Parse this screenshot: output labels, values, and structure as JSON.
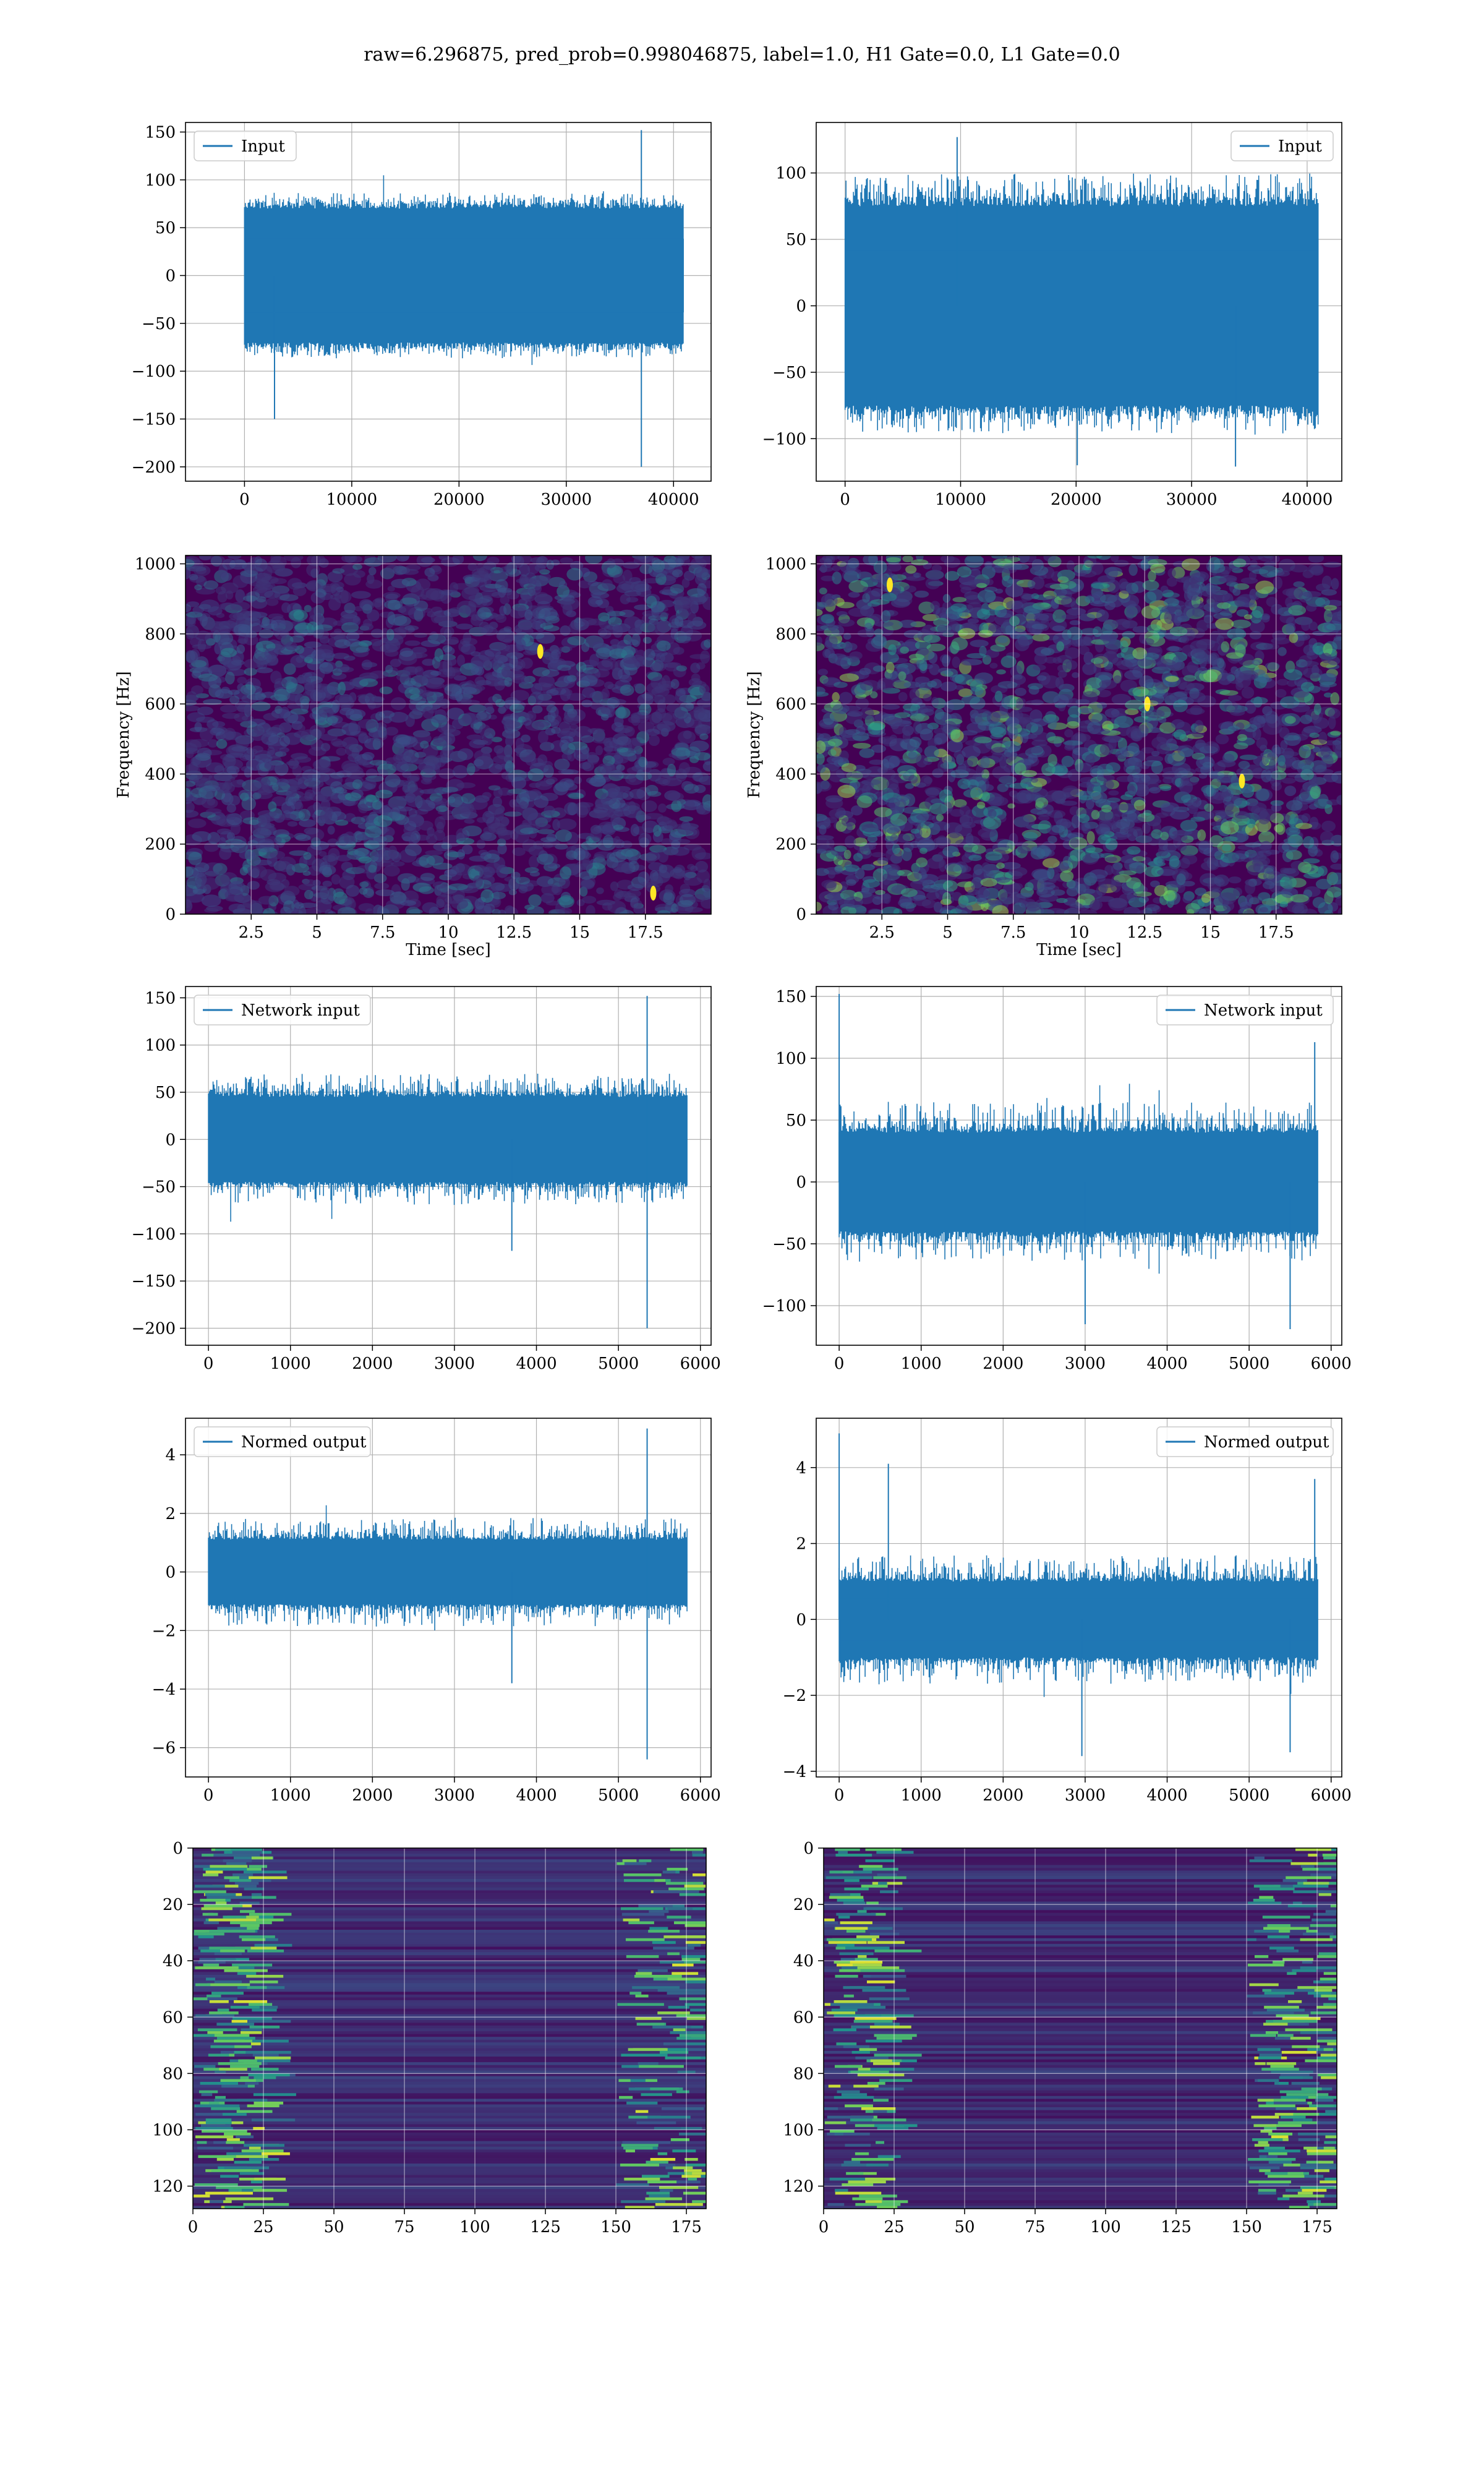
{
  "figure": {
    "title": "raw=6.296875, pred_prob=0.998046875, label=1.0, H1 Gate=0.0, L1 Gate=0.0"
  },
  "colors": {
    "line": "#1f77b4",
    "grid": "#b0b0b0",
    "viridis_low": "#440154",
    "viridis_high": "#fde725"
  },
  "chart_data": [
    {
      "id": "input-left",
      "type": "line",
      "legend": "Input",
      "legend_loc": "upper-left",
      "xlim": [
        -5500,
        43500
      ],
      "ylim": [
        -215,
        160
      ],
      "xticks": [
        0,
        10000,
        20000,
        30000,
        40000
      ],
      "yticks": [
        -200,
        -150,
        -100,
        -50,
        0,
        50,
        100,
        150
      ],
      "x_range": [
        0,
        40960
      ],
      "band": [
        -70,
        70
      ],
      "spread": [
        -100,
        100
      ],
      "peaks": [
        [
          37000,
          152
        ],
        [
          37000,
          -200
        ],
        [
          2800,
          -150
        ]
      ],
      "grid": true,
      "seed": 11
    },
    {
      "id": "input-right",
      "type": "line",
      "legend": "Input",
      "legend_loc": "upper-right",
      "xlim": [
        -2500,
        43000
      ],
      "ylim": [
        -132,
        138
      ],
      "xticks": [
        0,
        10000,
        20000,
        30000,
        40000
      ],
      "yticks": [
        -100,
        -50,
        0,
        50,
        100
      ],
      "x_range": [
        0,
        40960
      ],
      "band": [
        -75,
        75
      ],
      "spread": [
        -115,
        120
      ],
      "peaks": [
        [
          9700,
          127
        ],
        [
          20100,
          -120
        ],
        [
          33800,
          -121
        ]
      ],
      "grid": true,
      "seed": 23
    },
    {
      "id": "spectrogram-left",
      "type": "heatmap",
      "xlabel": "Time [sec]",
      "ylabel": "Frequency [Hz]",
      "xlim": [
        0,
        20
      ],
      "ylim": [
        0,
        1024
      ],
      "xticks": [
        2.5,
        5.0,
        7.5,
        10.0,
        12.5,
        15.0,
        17.5
      ],
      "yticks": [
        0,
        200,
        400,
        600,
        800,
        1000
      ],
      "intensity": 0.45,
      "hot_spots": [
        [
          17.8,
          60
        ],
        [
          13.5,
          750
        ]
      ],
      "grid": true,
      "seed": 5
    },
    {
      "id": "spectrogram-right",
      "type": "heatmap",
      "xlabel": "Time [sec]",
      "ylabel": "Frequency [Hz]",
      "xlim": [
        0,
        20
      ],
      "ylim": [
        0,
        1024
      ],
      "xticks": [
        2.5,
        5.0,
        7.5,
        10.0,
        12.5,
        15.0,
        17.5
      ],
      "yticks": [
        0,
        200,
        400,
        600,
        800,
        1000
      ],
      "intensity": 1.0,
      "hot_spots": [
        [
          16.2,
          380
        ],
        [
          2.8,
          940
        ],
        [
          12.6,
          600
        ]
      ],
      "grid": true,
      "seed": 7
    },
    {
      "id": "network-input-left",
      "type": "line",
      "legend": "Network input",
      "legend_loc": "upper-left",
      "xlim": [
        -280,
        6130
      ],
      "ylim": [
        -218,
        162
      ],
      "xticks": [
        0,
        1000,
        2000,
        3000,
        4000,
        5000,
        6000
      ],
      "yticks": [
        -200,
        -150,
        -100,
        -50,
        0,
        50,
        100,
        150
      ],
      "x_range": [
        0,
        5840
      ],
      "band": [
        -45,
        45
      ],
      "spread": [
        -90,
        90
      ],
      "peaks": [
        [
          5350,
          152
        ],
        [
          5350,
          -200
        ],
        [
          3700,
          -118
        ]
      ],
      "grid": true,
      "seed": 31
    },
    {
      "id": "network-input-right",
      "type": "line",
      "legend": "Network input",
      "legend_loc": "upper-right",
      "xlim": [
        -280,
        6130
      ],
      "ylim": [
        -132,
        158
      ],
      "xticks": [
        0,
        1000,
        2000,
        3000,
        4000,
        5000,
        6000
      ],
      "yticks": [
        -100,
        -50,
        0,
        50,
        100,
        150
      ],
      "x_range": [
        0,
        5840
      ],
      "band": [
        -40,
        40
      ],
      "spread": [
        -85,
        85
      ],
      "peaks": [
        [
          0,
          152
        ],
        [
          5800,
          113
        ],
        [
          3000,
          -115
        ],
        [
          5500,
          -119
        ]
      ],
      "grid": true,
      "seed": 41
    },
    {
      "id": "normed-output-left",
      "type": "line",
      "legend": "Normed output",
      "legend_loc": "upper-left",
      "xlim": [
        -280,
        6130
      ],
      "ylim": [
        -7.0,
        5.25
      ],
      "xticks": [
        0,
        1000,
        2000,
        3000,
        4000,
        5000,
        6000
      ],
      "yticks": [
        -6,
        -4,
        -2,
        0,
        2,
        4
      ],
      "x_range": [
        0,
        5840
      ],
      "band": [
        -1.1,
        1.1
      ],
      "spread": [
        -2.5,
        2.5
      ],
      "peaks": [
        [
          5350,
          4.9
        ],
        [
          5350,
          -6.4
        ],
        [
          3700,
          -3.8
        ]
      ],
      "grid": true,
      "seed": 53
    },
    {
      "id": "normed-output-right",
      "type": "line",
      "legend": "Normed output",
      "legend_loc": "upper-right",
      "xlim": [
        -280,
        6130
      ],
      "ylim": [
        -4.15,
        5.3
      ],
      "xticks": [
        0,
        1000,
        2000,
        3000,
        4000,
        5000,
        6000
      ],
      "yticks": [
        -4,
        -2,
        0,
        2,
        4
      ],
      "x_range": [
        0,
        5840
      ],
      "band": [
        -1.0,
        1.0
      ],
      "spread": [
        -2.3,
        2.3
      ],
      "peaks": [
        [
          0,
          4.9
        ],
        [
          600,
          4.1
        ],
        [
          5800,
          3.7
        ],
        [
          2960,
          -3.6
        ],
        [
          5500,
          -3.5
        ]
      ],
      "grid": true,
      "seed": 61
    },
    {
      "id": "features-left",
      "type": "heatmap",
      "xlim": [
        0,
        182
      ],
      "ylim": [
        128,
        0
      ],
      "xticks": [
        0,
        25,
        50,
        75,
        100,
        125,
        150,
        175
      ],
      "yticks": [
        0,
        20,
        40,
        60,
        80,
        100,
        120
      ],
      "pattern": "left-bright",
      "grid": true,
      "seed": 71
    },
    {
      "id": "features-right",
      "type": "heatmap",
      "xlim": [
        0,
        182
      ],
      "ylim": [
        128,
        0
      ],
      "xticks": [
        0,
        25,
        50,
        75,
        100,
        125,
        150,
        175
      ],
      "yticks": [
        0,
        20,
        40,
        60,
        80,
        100,
        120
      ],
      "pattern": "right-bright",
      "grid": true,
      "seed": 83
    }
  ]
}
